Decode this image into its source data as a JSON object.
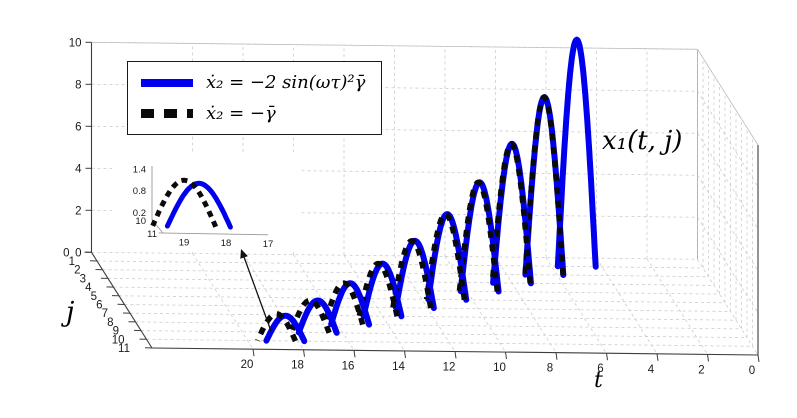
{
  "figure": {
    "background": "#ffffff"
  },
  "legend": {
    "entries": [
      {
        "label": "ẋ₂ = −2 sin(ωτ)²γ̄",
        "line_style": "solid",
        "color": "#0000ee"
      },
      {
        "label": "ẋ₂ = −γ̄",
        "line_style": "dashed",
        "color": "#0a0a0a"
      }
    ]
  },
  "annotation": {
    "curve_label": "x₁(t, j)"
  },
  "axes": {
    "t": {
      "label": "t",
      "ticks": [
        20,
        18,
        16,
        14,
        12,
        10,
        8,
        6,
        4,
        2,
        0
      ]
    },
    "j": {
      "label": "j",
      "ticks": [
        0,
        1,
        2,
        3,
        4,
        5,
        6,
        7,
        8,
        9,
        10,
        11
      ]
    },
    "z": {
      "ticks": [
        0,
        2,
        4,
        6,
        8,
        10
      ]
    }
  },
  "inset": {
    "z_ticks": [
      1.4,
      0.8,
      0.2
    ],
    "t_ticks": [
      19,
      18,
      17
    ],
    "j_ticks": [
      10,
      11
    ]
  },
  "chart_data": {
    "type": "line",
    "projection": "3d",
    "title": "",
    "xlabel": "t",
    "ylabel": "j",
    "x_range": [
      0,
      20
    ],
    "j_range": [
      0,
      11
    ],
    "z_range": [
      0,
      10
    ],
    "x_axis_reversed": true,
    "grid": true,
    "legend_position": "upper left",
    "series": [
      {
        "name": "ẋ₂ = −2 sin(ωτ)²γ̄",
        "style": "solid",
        "color": "#0000ee",
        "width": 6,
        "arcs": [
          {
            "j": 1,
            "t": [
              4.25,
              5.75
            ],
            "peak": 10.8
          },
          {
            "j": 2,
            "t": [
              5.75,
              7.25
            ],
            "peak": 8.46
          },
          {
            "j": 3,
            "t": [
              7.25,
              8.75
            ],
            "peak": 6.63
          },
          {
            "j": 4,
            "t": [
              8.75,
              10.25
            ],
            "peak": 5.19
          },
          {
            "j": 5,
            "t": [
              10.25,
              11.75
            ],
            "peak": 4.07
          },
          {
            "j": 6,
            "t": [
              11.75,
              13.25
            ],
            "peak": 3.19
          },
          {
            "j": 7,
            "t": [
              13.25,
              14.75
            ],
            "peak": 2.5
          },
          {
            "j": 8,
            "t": [
              14.75,
              16.25
            ],
            "peak": 1.96
          },
          {
            "j": 9,
            "t": [
              16.25,
              17.75
            ],
            "peak": 1.53
          },
          {
            "j": 10,
            "t": [
              17.75,
              19.25
            ],
            "peak": 1.2
          }
        ]
      },
      {
        "name": "ẋ₂ = −γ̄",
        "style": "dashed",
        "color": "#0a0a0a",
        "width": 5.5,
        "arcs": [
          {
            "j": 2,
            "t": [
              5.76,
              7.26
            ],
            "peak": 8.46
          },
          {
            "j": 3,
            "t": [
              7.28,
              8.78
            ],
            "peak": 6.63
          },
          {
            "j": 4,
            "t": [
              8.8,
              10.3
            ],
            "peak": 5.19
          },
          {
            "j": 5,
            "t": [
              10.32,
              11.82
            ],
            "peak": 4.07
          },
          {
            "j": 6,
            "t": [
              11.87,
              13.37
            ],
            "peak": 3.19
          },
          {
            "j": 7,
            "t": [
              13.42,
              14.92
            ],
            "peak": 2.5
          },
          {
            "j": 8,
            "t": [
              15.0,
              16.5
            ],
            "peak": 1.96
          },
          {
            "j": 9,
            "t": [
              16.55,
              18.05
            ],
            "peak": 1.53
          },
          {
            "j": 10,
            "t": [
              18.1,
              19.6
            ],
            "peak": 1.28
          }
        ]
      }
    ],
    "inset_view": {
      "t_range": [
        17,
        19.6
      ],
      "j_range": [
        10,
        11
      ],
      "z_range": [
        0,
        1.5
      ]
    }
  }
}
